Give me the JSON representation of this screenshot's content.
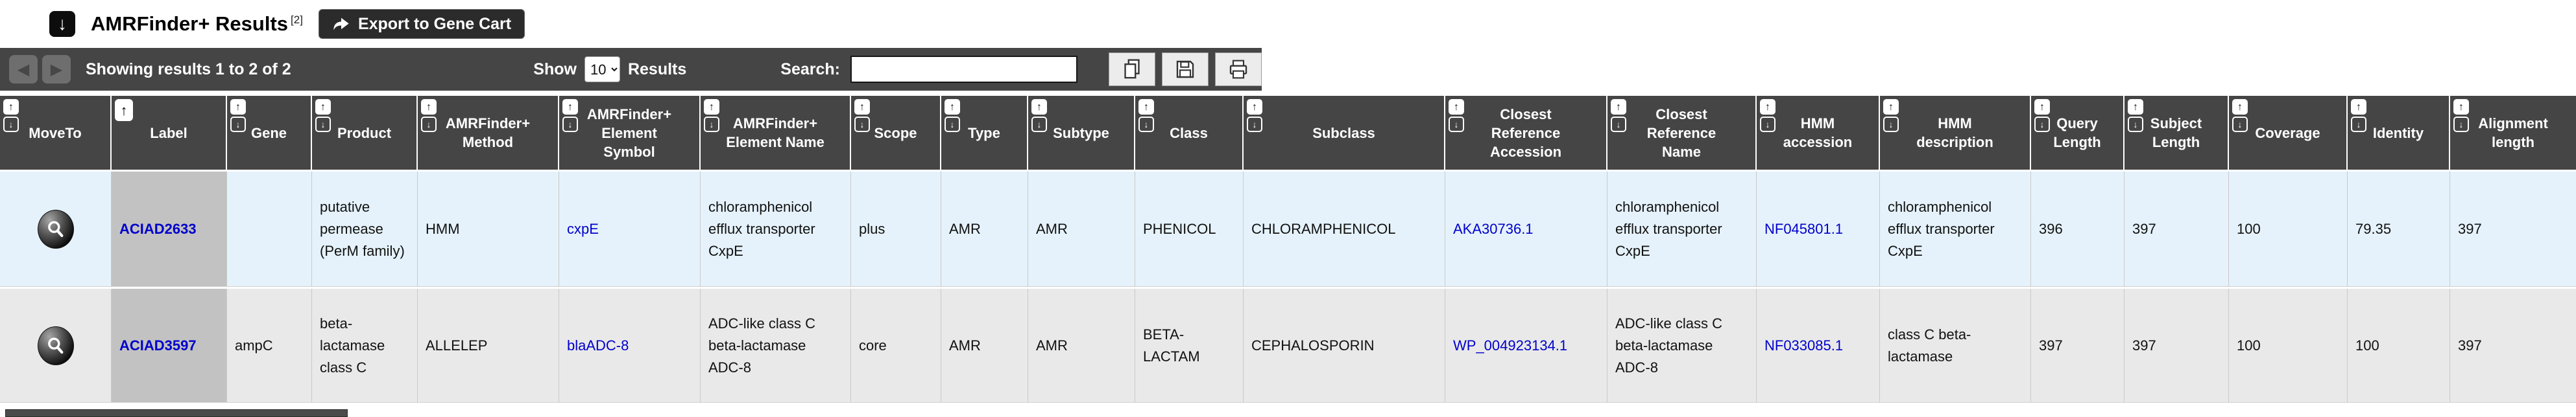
{
  "header": {
    "title": "AMRFinder+ Results",
    "superscript": "[2]",
    "export_button": "Export to Gene Cart"
  },
  "toolbar": {
    "showing_text": "Showing results 1 to 2 of 2",
    "show_label": "Show",
    "page_size": "10",
    "results_label": "Results",
    "search_label": "Search:",
    "search_value": "",
    "action_icons": [
      "copy-icon",
      "save-icon",
      "print-icon"
    ]
  },
  "colors": {
    "link_blue": "#0000cc",
    "header_bg": "#454545",
    "row_odd_bg": "#e5f2fb",
    "row_even_bg": "#e9e9e9",
    "label_column_bg": "#c2c2c2"
  },
  "table": {
    "row_action_icon": "magnifier-icon",
    "link_columns": [
      "label",
      "element_symbol",
      "closest_reference_accession",
      "hmm_accession"
    ],
    "columns": [
      {
        "key": "moveto",
        "label": "MoveTo",
        "sort": "both"
      },
      {
        "key": "label",
        "label": "Label",
        "sort": "asc"
      },
      {
        "key": "gene",
        "label": "Gene",
        "sort": "both"
      },
      {
        "key": "product",
        "label": "Product",
        "sort": "both"
      },
      {
        "key": "method",
        "label": "AMRFinder+ Method",
        "sort": "both"
      },
      {
        "key": "element_symbol",
        "label": "AMRFinder+ Element Symbol",
        "sort": "both"
      },
      {
        "key": "element_name",
        "label": "AMRFinder+ Element Name",
        "sort": "both"
      },
      {
        "key": "scope",
        "label": "Scope",
        "sort": "both"
      },
      {
        "key": "type",
        "label": "Type",
        "sort": "both"
      },
      {
        "key": "subtype",
        "label": "Subtype",
        "sort": "both"
      },
      {
        "key": "class",
        "label": "Class",
        "sort": "both"
      },
      {
        "key": "subclass",
        "label": "Subclass",
        "sort": "both"
      },
      {
        "key": "closest_reference_accession",
        "label": "Closest Reference Accession",
        "sort": "both"
      },
      {
        "key": "closest_reference_name",
        "label": "Closest Reference Name",
        "sort": "both"
      },
      {
        "key": "hmm_accession",
        "label": "HMM accession",
        "sort": "both"
      },
      {
        "key": "hmm_description",
        "label": "HMM description",
        "sort": "both"
      },
      {
        "key": "query_length",
        "label": "Query Length",
        "sort": "both"
      },
      {
        "key": "subject_length",
        "label": "Subject Length",
        "sort": "both"
      },
      {
        "key": "coverage",
        "label": "Coverage",
        "sort": "both"
      },
      {
        "key": "identity",
        "label": "Identity",
        "sort": "both"
      },
      {
        "key": "alignment_length",
        "label": "Alignment length",
        "sort": "both"
      }
    ],
    "rows": [
      {
        "label": "ACIAD2633",
        "gene": "",
        "product": "putative permease (PerM family)",
        "method": "HMM",
        "element_symbol": "cxpE",
        "element_name": "chloramphenicol efflux transporter CxpE",
        "scope": "plus",
        "type": "AMR",
        "subtype": "AMR",
        "class": "PHENICOL",
        "subclass": "CHLORAMPHENICOL",
        "closest_reference_accession": "AKA30736.1",
        "closest_reference_name": "chloramphenicol efflux transporter CxpE",
        "hmm_accession": "NF045801.1",
        "hmm_description": "chloramphenicol efflux transporter CxpE",
        "query_length": "396",
        "subject_length": "397",
        "coverage": "100",
        "identity": "79.35",
        "alignment_length": "397"
      },
      {
        "label": "ACIAD3597",
        "gene": "ampC",
        "product": "beta-lactamase class C",
        "method": "ALLELEP",
        "element_symbol": "blaADC-8",
        "element_name": "ADC-like class C beta-lactamase ADC-8",
        "scope": "core",
        "type": "AMR",
        "subtype": "AMR",
        "class": "BETA-LACTAM",
        "subclass": "CEPHALOSPORIN",
        "closest_reference_accession": "WP_004923134.1",
        "closest_reference_name": "ADC-like class C beta-lactamase ADC-8",
        "hmm_accession": "NF033085.1",
        "hmm_description": "class C beta-lactamase",
        "query_length": "397",
        "subject_length": "397",
        "coverage": "100",
        "identity": "100",
        "alignment_length": "397"
      }
    ]
  }
}
